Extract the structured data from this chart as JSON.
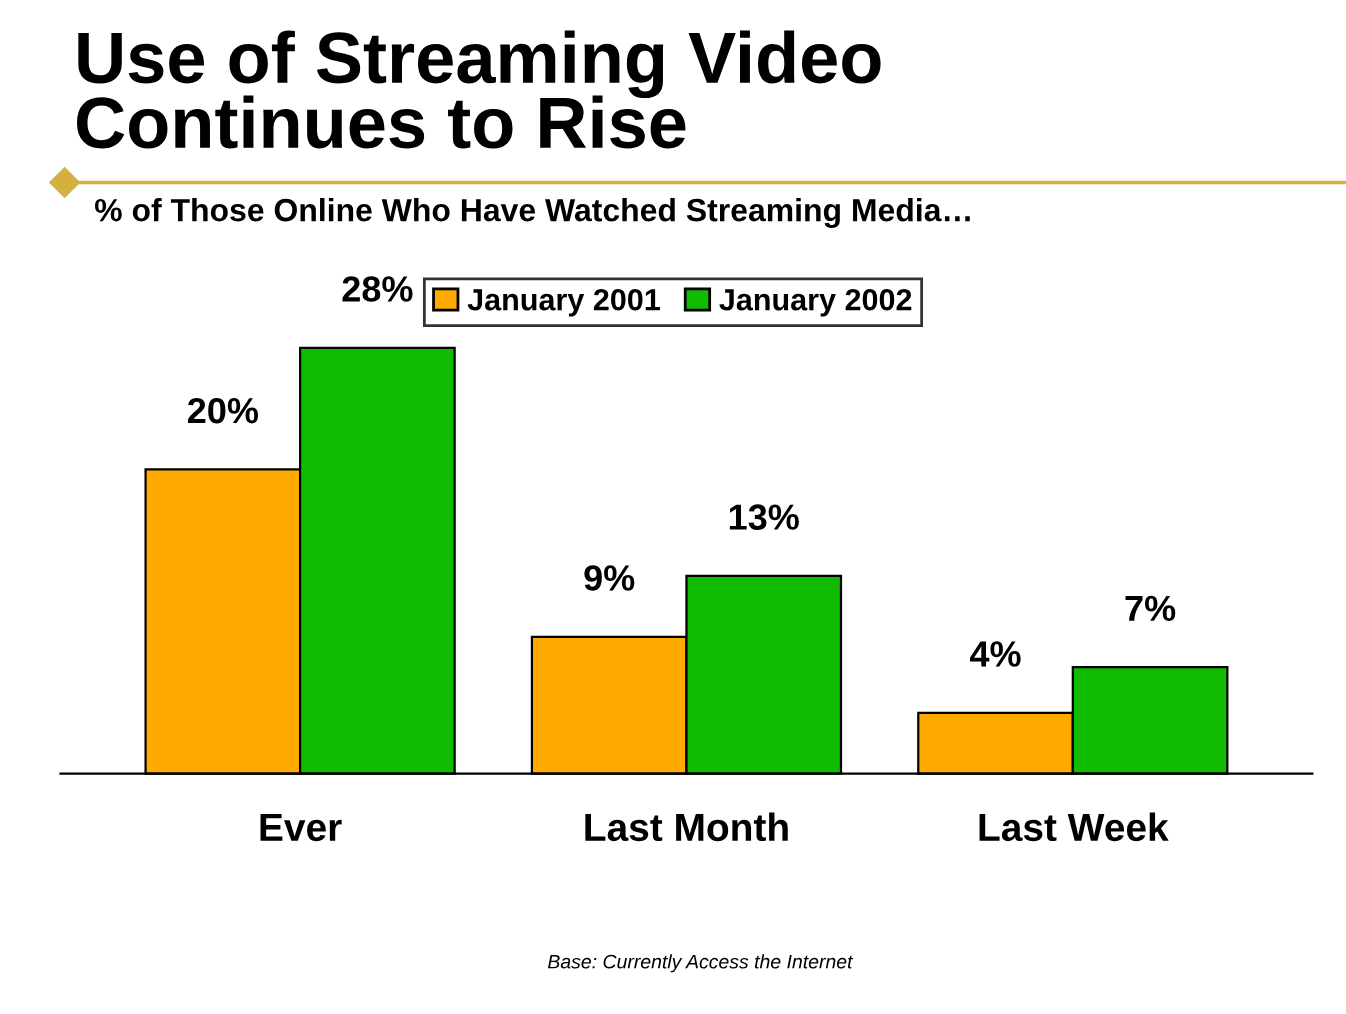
{
  "chart_data": {
    "type": "bar",
    "title": "Use of Streaming Video\nContinues to Rise",
    "subtitle": "% of Those Online Who Have Watched Streaming Media…",
    "categories": [
      "Ever",
      "Last Month",
      "Last Week"
    ],
    "series": [
      {
        "name": "January 2001",
        "color": "#ffaa00",
        "values": [
          20,
          9,
          4
        ],
        "value_labels": [
          "20%",
          "9%",
          "4%"
        ]
      },
      {
        "name": "January 2002",
        "color": "#11bb00",
        "values": [
          28,
          13,
          7
        ],
        "value_labels": [
          "28%",
          "13%",
          "7%"
        ]
      }
    ],
    "legend": "top",
    "grid": false,
    "annotations": [
      "Base: Currently Access the Internet"
    ]
  }
}
